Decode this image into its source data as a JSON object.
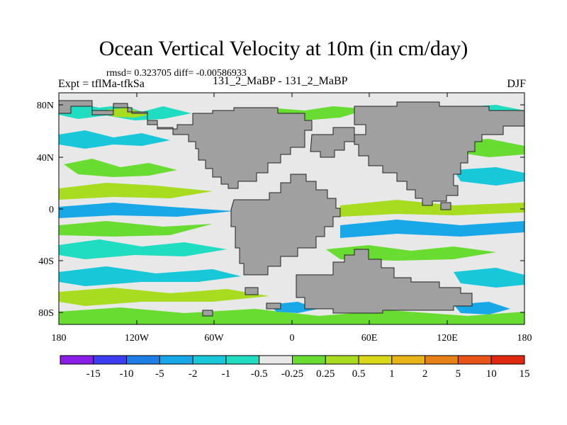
{
  "title": "Ocean Vertical Velocity at 10m (in cm/day)",
  "stats_line": "rmsd= 0.323705 diff= -0.00586933",
  "left_label": "Expt = tflMa-tfkSa",
  "center_label": "131_2_MaBP - 131_2_MaBP",
  "right_label": "DJF",
  "lat_labels": [
    "80N",
    "40N",
    "0",
    "40S",
    "80S"
  ],
  "lon_labels": [
    "180",
    "120W",
    "60W",
    "0",
    "60E",
    "120E",
    "180"
  ],
  "colorbar": {
    "labels": [
      "-15",
      "-10",
      "-5",
      "-2",
      "-1",
      "-0.5",
      "-0.25",
      "0.25",
      "0.5",
      "1",
      "2",
      "5",
      "10",
      "15"
    ],
    "colors": [
      "#8a1ee8",
      "#3c3cf0",
      "#1e7ee6",
      "#18a8e8",
      "#18c8d8",
      "#20dcc0",
      "#e8e8e8",
      "#68dc30",
      "#a8dc20",
      "#d8d818",
      "#e8b418",
      "#e88018",
      "#e85418",
      "#e02810"
    ]
  },
  "colors": {
    "land": "#a0a0a0",
    "ocean_neutral": "#e8e8e8"
  }
}
